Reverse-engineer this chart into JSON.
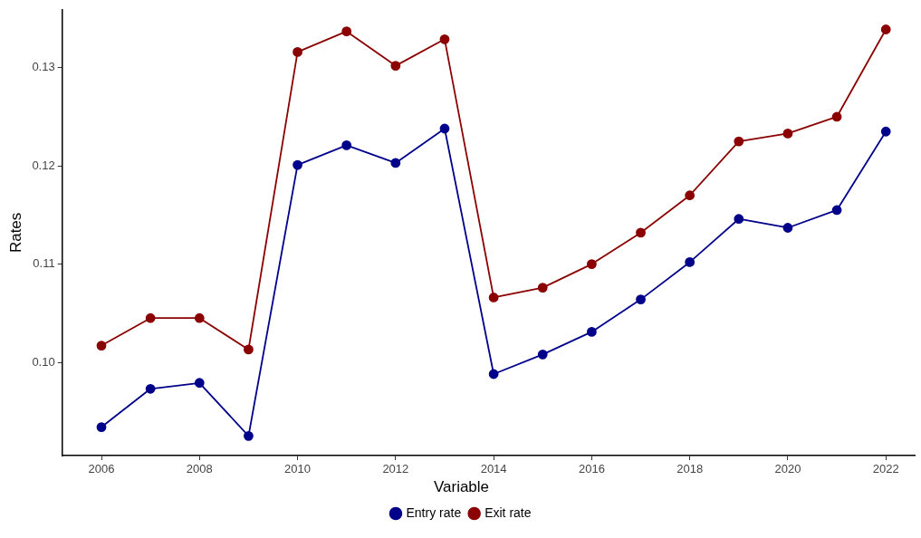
{
  "chart_data": {
    "type": "line",
    "ylabel": "Rates",
    "legend_title": "Variable",
    "legend": "bottom",
    "grid": false,
    "marker": "circle",
    "line_style": "solid",
    "x": [
      2006,
      2007,
      2008,
      2009,
      2010,
      2011,
      2012,
      2013,
      2014,
      2015,
      2016,
      2017,
      2018,
      2019,
      2020,
      2021,
      2022
    ],
    "xlim": [
      2005.2,
      2022.6
    ],
    "xticks": [
      2006,
      2008,
      2010,
      2012,
      2014,
      2016,
      2018,
      2020,
      2022
    ],
    "ylim": [
      0.0905,
      0.1359
    ],
    "yticks": [
      {
        "value": 0.1,
        "label": "0.10"
      },
      0.11,
      0.12,
      0.13
    ],
    "series": [
      {
        "name": "Entry rate",
        "color": "#00008b",
        "values": [
          0.0934,
          0.0973,
          0.0979,
          0.0925,
          0.1201,
          0.1221,
          0.1203,
          0.1238,
          0.0988,
          0.1008,
          0.1031,
          0.1064,
          0.1102,
          0.1146,
          0.1137,
          0.1155,
          0.1235
        ]
      },
      {
        "name": "Exit rate",
        "color": "#8b0000",
        "values": [
          0.1017,
          0.1045,
          0.1045,
          0.1013,
          0.1316,
          0.1337,
          0.1302,
          0.1329,
          0.1066,
          0.1076,
          0.11,
          0.1132,
          0.117,
          0.1225,
          0.1233,
          0.125,
          0.1339
        ]
      }
    ]
  }
}
